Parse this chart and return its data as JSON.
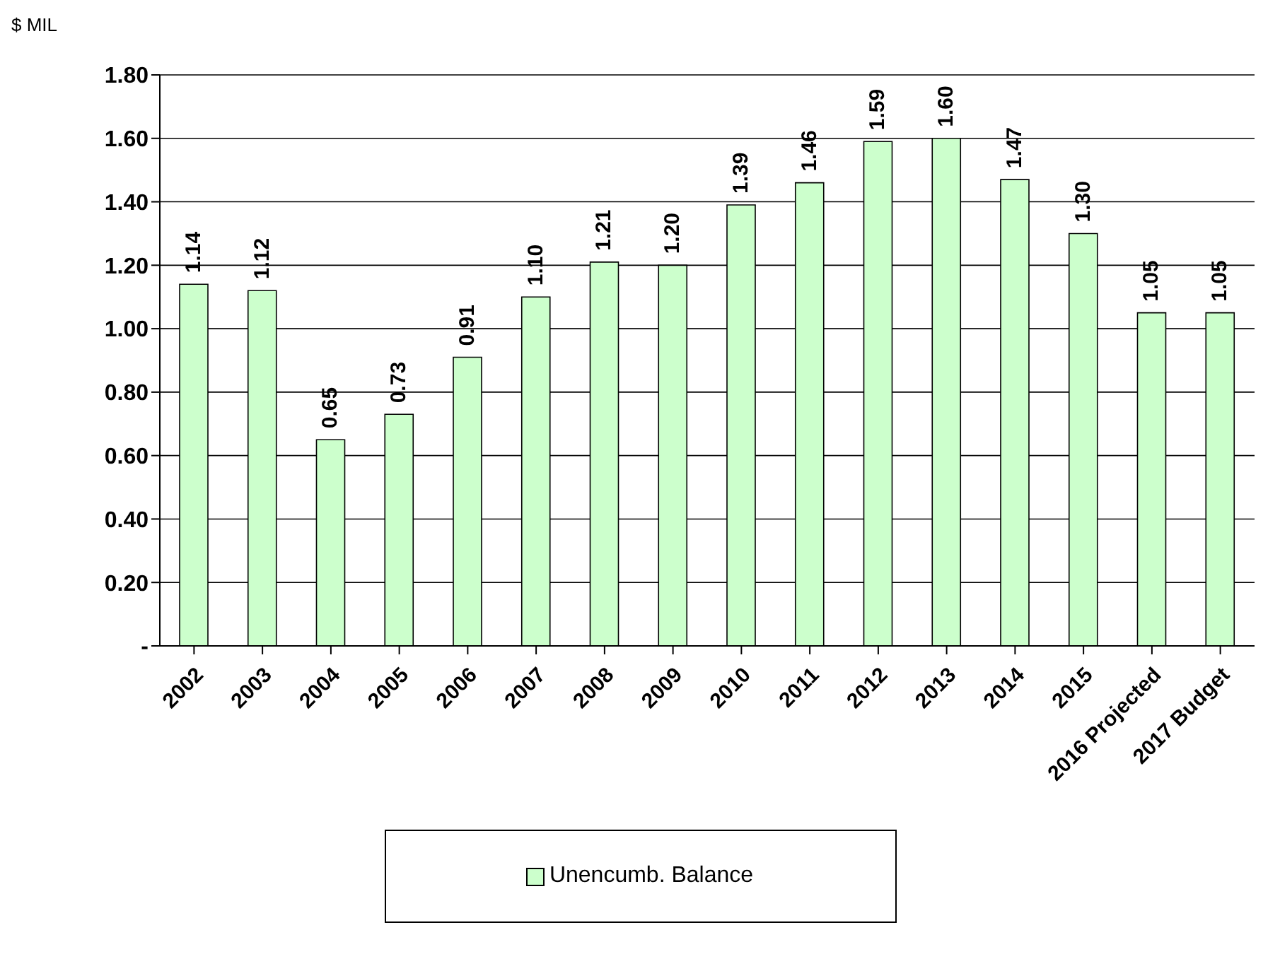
{
  "chart_data": {
    "type": "bar",
    "ylabel": "$ MIL",
    "categories": [
      "2002",
      "2003",
      "2004",
      "2005",
      "2006",
      "2007",
      "2008",
      "2009",
      "2010",
      "2011",
      "2012",
      "2013",
      "2014",
      "2015",
      "2016 Projected",
      "2017 Budget"
    ],
    "series": [
      {
        "name": "Unencumb. Balance",
        "color": "#ccffcc",
        "values": [
          1.14,
          1.12,
          0.65,
          0.73,
          0.91,
          1.1,
          1.21,
          1.2,
          1.39,
          1.46,
          1.59,
          1.6,
          1.47,
          1.3,
          1.05,
          1.05
        ],
        "value_labels": [
          "1.14",
          "1.12",
          "0.65",
          "0.73",
          "0.91",
          "1.10",
          "1.21",
          "1.20",
          "1.39",
          "1.46",
          "1.59",
          "1.60",
          "1.47",
          "1.30",
          "1.05",
          "1.05"
        ]
      }
    ],
    "ylim": [
      0,
      1.8
    ],
    "yticks": [
      {
        "value": 0,
        "label": "-"
      },
      {
        "value": 0.2,
        "label": "0.20"
      },
      {
        "value": 0.4,
        "label": "0.40"
      },
      {
        "value": 0.6,
        "label": "0.60"
      },
      {
        "value": 0.8,
        "label": "0.80"
      },
      {
        "value": 1.0,
        "label": "1.00"
      },
      {
        "value": 1.2,
        "label": "1.20"
      },
      {
        "value": 1.4,
        "label": "1.40"
      },
      {
        "value": 1.6,
        "label": "1.60"
      },
      {
        "value": 1.8,
        "label": "1.80"
      }
    ],
    "grid": "y",
    "legend": "bottom"
  }
}
